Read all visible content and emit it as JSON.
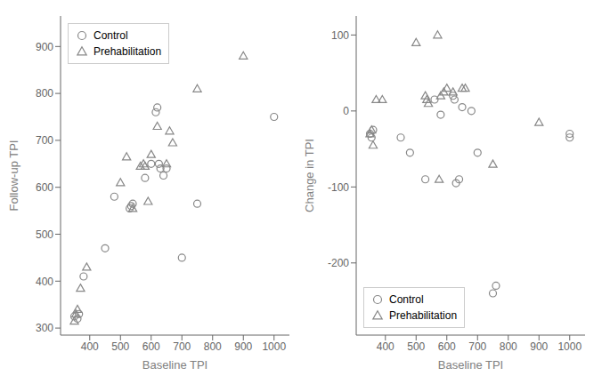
{
  "chart_data": [
    {
      "type": "scatter",
      "xlabel": "Baseline TPI",
      "ylabel": "Follow-up TPI",
      "xlim": [
        305,
        1050
      ],
      "ylim": [
        285,
        965
      ],
      "xticks": [
        400,
        500,
        600,
        700,
        800,
        900,
        1000
      ],
      "yticks": [
        300,
        400,
        500,
        600,
        700,
        800,
        900
      ],
      "legend": "upper left",
      "grid": false,
      "series": [
        {
          "name": "Control",
          "color": "#888888",
          "marker": "circle",
          "x": [
            350,
            360,
            365,
            380,
            450,
            480,
            530,
            535,
            540,
            580,
            600,
            615,
            620,
            625,
            630,
            640,
            650,
            700,
            750,
            1000
          ],
          "values": [
            325,
            320,
            330,
            410,
            470,
            580,
            555,
            560,
            565,
            620,
            650,
            760,
            770,
            650,
            640,
            625,
            640,
            450,
            565,
            750
          ]
        },
        {
          "name": "Prehabilitation",
          "color": "#888888",
          "marker": "triangle",
          "x": [
            350,
            355,
            360,
            370,
            390,
            500,
            520,
            540,
            565,
            575,
            580,
            590,
            600,
            620,
            650,
            660,
            670,
            750,
            900
          ],
          "values": [
            315,
            330,
            340,
            385,
            430,
            610,
            665,
            555,
            645,
            650,
            645,
            570,
            670,
            730,
            650,
            720,
            695,
            810,
            880
          ]
        }
      ]
    },
    {
      "type": "scatter",
      "xlabel": "Baseline TPI",
      "ylabel": "Change in TPI",
      "xlim": [
        305,
        1050
      ],
      "ylim": [
        -295,
        125
      ],
      "xticks": [
        400,
        500,
        600,
        700,
        800,
        900,
        1000
      ],
      "yticks": [
        100,
        0,
        -100,
        -200
      ],
      "legend": "lower left",
      "grid": false,
      "series": [
        {
          "name": "Control",
          "color": "#888888",
          "marker": "circle",
          "x": [
            350,
            355,
            360,
            450,
            480,
            530,
            560,
            580,
            620,
            625,
            630,
            640,
            650,
            680,
            700,
            750,
            760,
            1000,
            1000
          ],
          "values": [
            -30,
            -35,
            -25,
            -35,
            -55,
            -90,
            15,
            -5,
            20,
            15,
            -95,
            -90,
            5,
            0,
            -55,
            -240,
            -230,
            -35,
            -30
          ]
        },
        {
          "name": "Prehabilitation",
          "color": "#888888",
          "marker": "triangle",
          "x": [
            350,
            355,
            360,
            370,
            390,
            500,
            530,
            535,
            540,
            570,
            575,
            580,
            590,
            600,
            620,
            650,
            660,
            750,
            900
          ],
          "values": [
            -30,
            -25,
            -45,
            15,
            15,
            90,
            20,
            15,
            10,
            100,
            -90,
            20,
            25,
            30,
            25,
            30,
            30,
            -70,
            -15
          ]
        }
      ]
    }
  ]
}
